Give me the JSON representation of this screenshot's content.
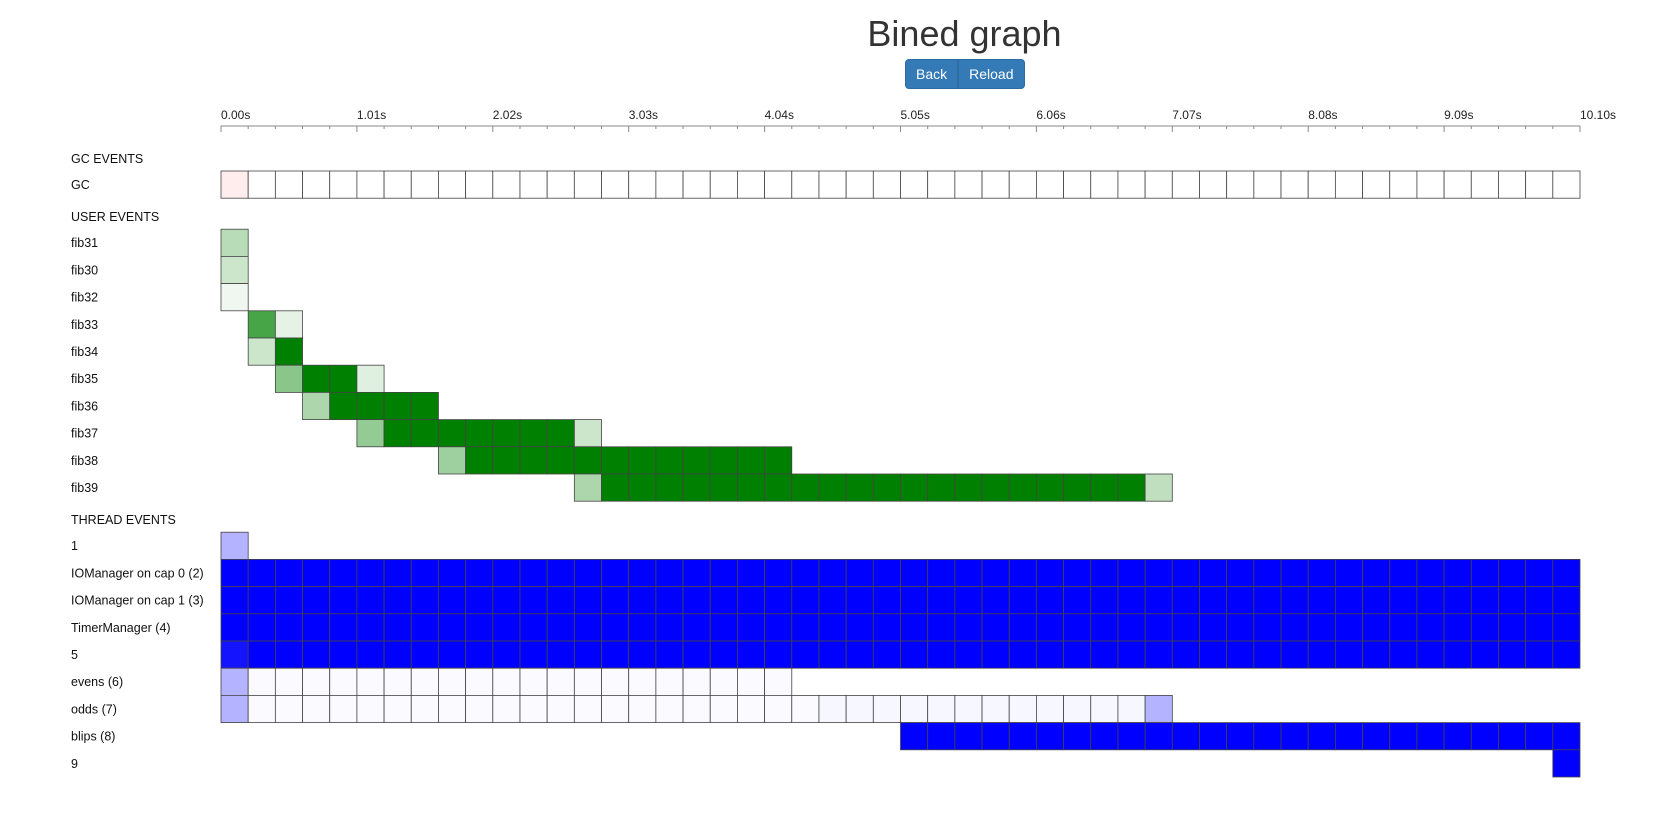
{
  "page": {
    "title": "Bined graph"
  },
  "toolbar": {
    "back_label": "Back",
    "reload_label": "Reload"
  },
  "colors": {
    "user": "#008000",
    "thread": "#0000ff",
    "gc": "#ff0000",
    "grid": "#444444"
  },
  "axis": {
    "tick_labels": [
      "0.00s",
      "1.01s",
      "2.02s",
      "3.03s",
      "4.04s",
      "5.05s",
      "6.06s",
      "7.07s",
      "8.08s",
      "9.09s",
      "10.10s"
    ],
    "minor_per_major": 5,
    "bins": 50
  },
  "sections": [
    {
      "title": "GC EVENTS",
      "kind": "gc",
      "rows": [
        {
          "label": "GC",
          "start": 0,
          "levels": [
            0.07,
            0,
            0,
            0,
            0,
            0,
            0,
            0,
            0,
            0,
            0,
            0,
            0,
            0,
            0,
            0,
            0,
            0,
            0,
            0,
            0,
            0,
            0,
            0,
            0,
            0,
            0,
            0,
            0,
            0,
            0,
            0,
            0,
            0,
            0,
            0,
            0,
            0,
            0,
            0,
            0,
            0,
            0,
            0,
            0,
            0,
            0,
            0,
            0,
            0
          ]
        }
      ]
    },
    {
      "title": "USER EVENTS",
      "kind": "user",
      "rows": [
        {
          "label": "fib31",
          "start": 0,
          "levels": [
            0.28
          ]
        },
        {
          "label": "fib30",
          "start": 0,
          "levels": [
            0.2
          ]
        },
        {
          "label": "fib32",
          "start": 0,
          "levels": [
            0.06
          ]
        },
        {
          "label": "fib33",
          "start": 1,
          "levels": [
            0.72,
            0.1
          ]
        },
        {
          "label": "fib34",
          "start": 1,
          "levels": [
            0.2,
            1
          ]
        },
        {
          "label": "fib35",
          "start": 2,
          "levels": [
            0.46,
            1,
            1,
            0.12
          ]
        },
        {
          "label": "fib36",
          "start": 3,
          "levels": [
            0.32,
            1,
            1,
            1,
            1
          ]
        },
        {
          "label": "fib37",
          "start": 5,
          "levels": [
            0.42,
            1,
            1,
            1,
            1,
            1,
            1,
            1,
            0.2
          ]
        },
        {
          "label": "fib38",
          "start": 8,
          "levels": [
            0.38,
            1,
            1,
            1,
            1,
            1,
            1,
            1,
            1,
            1,
            1,
            1,
            1
          ]
        },
        {
          "label": "fib39",
          "start": 13,
          "levels": [
            0.32,
            1,
            1,
            1,
            1,
            1,
            1,
            1,
            1,
            1,
            1,
            1,
            1,
            1,
            1,
            1,
            1,
            1,
            1,
            1,
            1,
            0.25
          ]
        }
      ]
    },
    {
      "title": "THREAD EVENTS",
      "kind": "thread",
      "rows": [
        {
          "label": "1",
          "start": 0,
          "levels": [
            0.3
          ]
        },
        {
          "label": "IOManager on cap 0 (2)",
          "start": 0,
          "levels": [
            1,
            1,
            1,
            1,
            1,
            1,
            1,
            1,
            1,
            1,
            1,
            1,
            1,
            1,
            1,
            1,
            1,
            1,
            1,
            1,
            1,
            1,
            1,
            1,
            1,
            1,
            1,
            1,
            1,
            1,
            1,
            1,
            1,
            1,
            1,
            1,
            1,
            1,
            1,
            1,
            1,
            1,
            1,
            1,
            1,
            1,
            1,
            1,
            1,
            1
          ]
        },
        {
          "label": "IOManager on cap 1 (3)",
          "start": 0,
          "levels": [
            1,
            1,
            1,
            1,
            1,
            1,
            1,
            1,
            1,
            1,
            1,
            1,
            1,
            1,
            1,
            1,
            1,
            1,
            1,
            1,
            1,
            1,
            1,
            1,
            1,
            1,
            1,
            1,
            1,
            1,
            1,
            1,
            1,
            1,
            1,
            1,
            1,
            1,
            1,
            1,
            1,
            1,
            1,
            1,
            1,
            1,
            1,
            1,
            1,
            1
          ]
        },
        {
          "label": "TimerManager (4)",
          "start": 0,
          "levels": [
            1,
            1,
            1,
            1,
            1,
            1,
            1,
            1,
            1,
            1,
            1,
            1,
            1,
            1,
            1,
            1,
            1,
            1,
            1,
            1,
            1,
            1,
            1,
            1,
            1,
            1,
            1,
            1,
            1,
            1,
            1,
            1,
            1,
            1,
            1,
            1,
            1,
            1,
            1,
            1,
            1,
            1,
            1,
            1,
            1,
            1,
            1,
            1,
            1,
            1
          ]
        },
        {
          "label": "5",
          "start": 0,
          "levels": [
            0.92,
            1,
            1,
            1,
            1,
            1,
            1,
            1,
            1,
            1,
            1,
            1,
            1,
            1,
            1,
            1,
            1,
            1,
            1,
            1,
            1,
            1,
            1,
            1,
            1,
            1,
            1,
            1,
            1,
            1,
            1,
            1,
            1,
            1,
            1,
            1,
            1,
            1,
            1,
            1,
            1,
            1,
            1,
            1,
            1,
            1,
            1,
            1,
            1,
            1
          ]
        },
        {
          "label": "evens (6)",
          "start": 0,
          "levels": [
            0.3,
            0.02,
            0.02,
            0.02,
            0.02,
            0.02,
            0.02,
            0.02,
            0.02,
            0.02,
            0.02,
            0.02,
            0.02,
            0.02,
            0.02,
            0.02,
            0.02,
            0.02,
            0.02,
            0.02,
            0.02
          ]
        },
        {
          "label": "odds (7)",
          "start": 0,
          "levels": [
            0.3,
            0.02,
            0.02,
            0.02,
            0.02,
            0.02,
            0.02,
            0.02,
            0.02,
            0.02,
            0.02,
            0.02,
            0.02,
            0.02,
            0.02,
            0.02,
            0.02,
            0.02,
            0.02,
            0.02,
            0.02,
            0.02,
            0.03,
            0.03,
            0.03,
            0.03,
            0.03,
            0.03,
            0.03,
            0.03,
            0.03,
            0.03,
            0.03,
            0.03,
            0.3
          ]
        },
        {
          "label": "blips (8)",
          "start": 25,
          "levels": [
            1,
            1,
            1,
            1,
            1,
            1,
            1,
            1,
            1,
            1,
            1,
            1,
            1,
            1,
            1,
            1,
            1,
            1,
            1,
            1,
            1,
            1,
            1,
            1,
            1
          ]
        },
        {
          "label": "9",
          "start": 49,
          "levels": [
            1
          ]
        }
      ]
    }
  ]
}
